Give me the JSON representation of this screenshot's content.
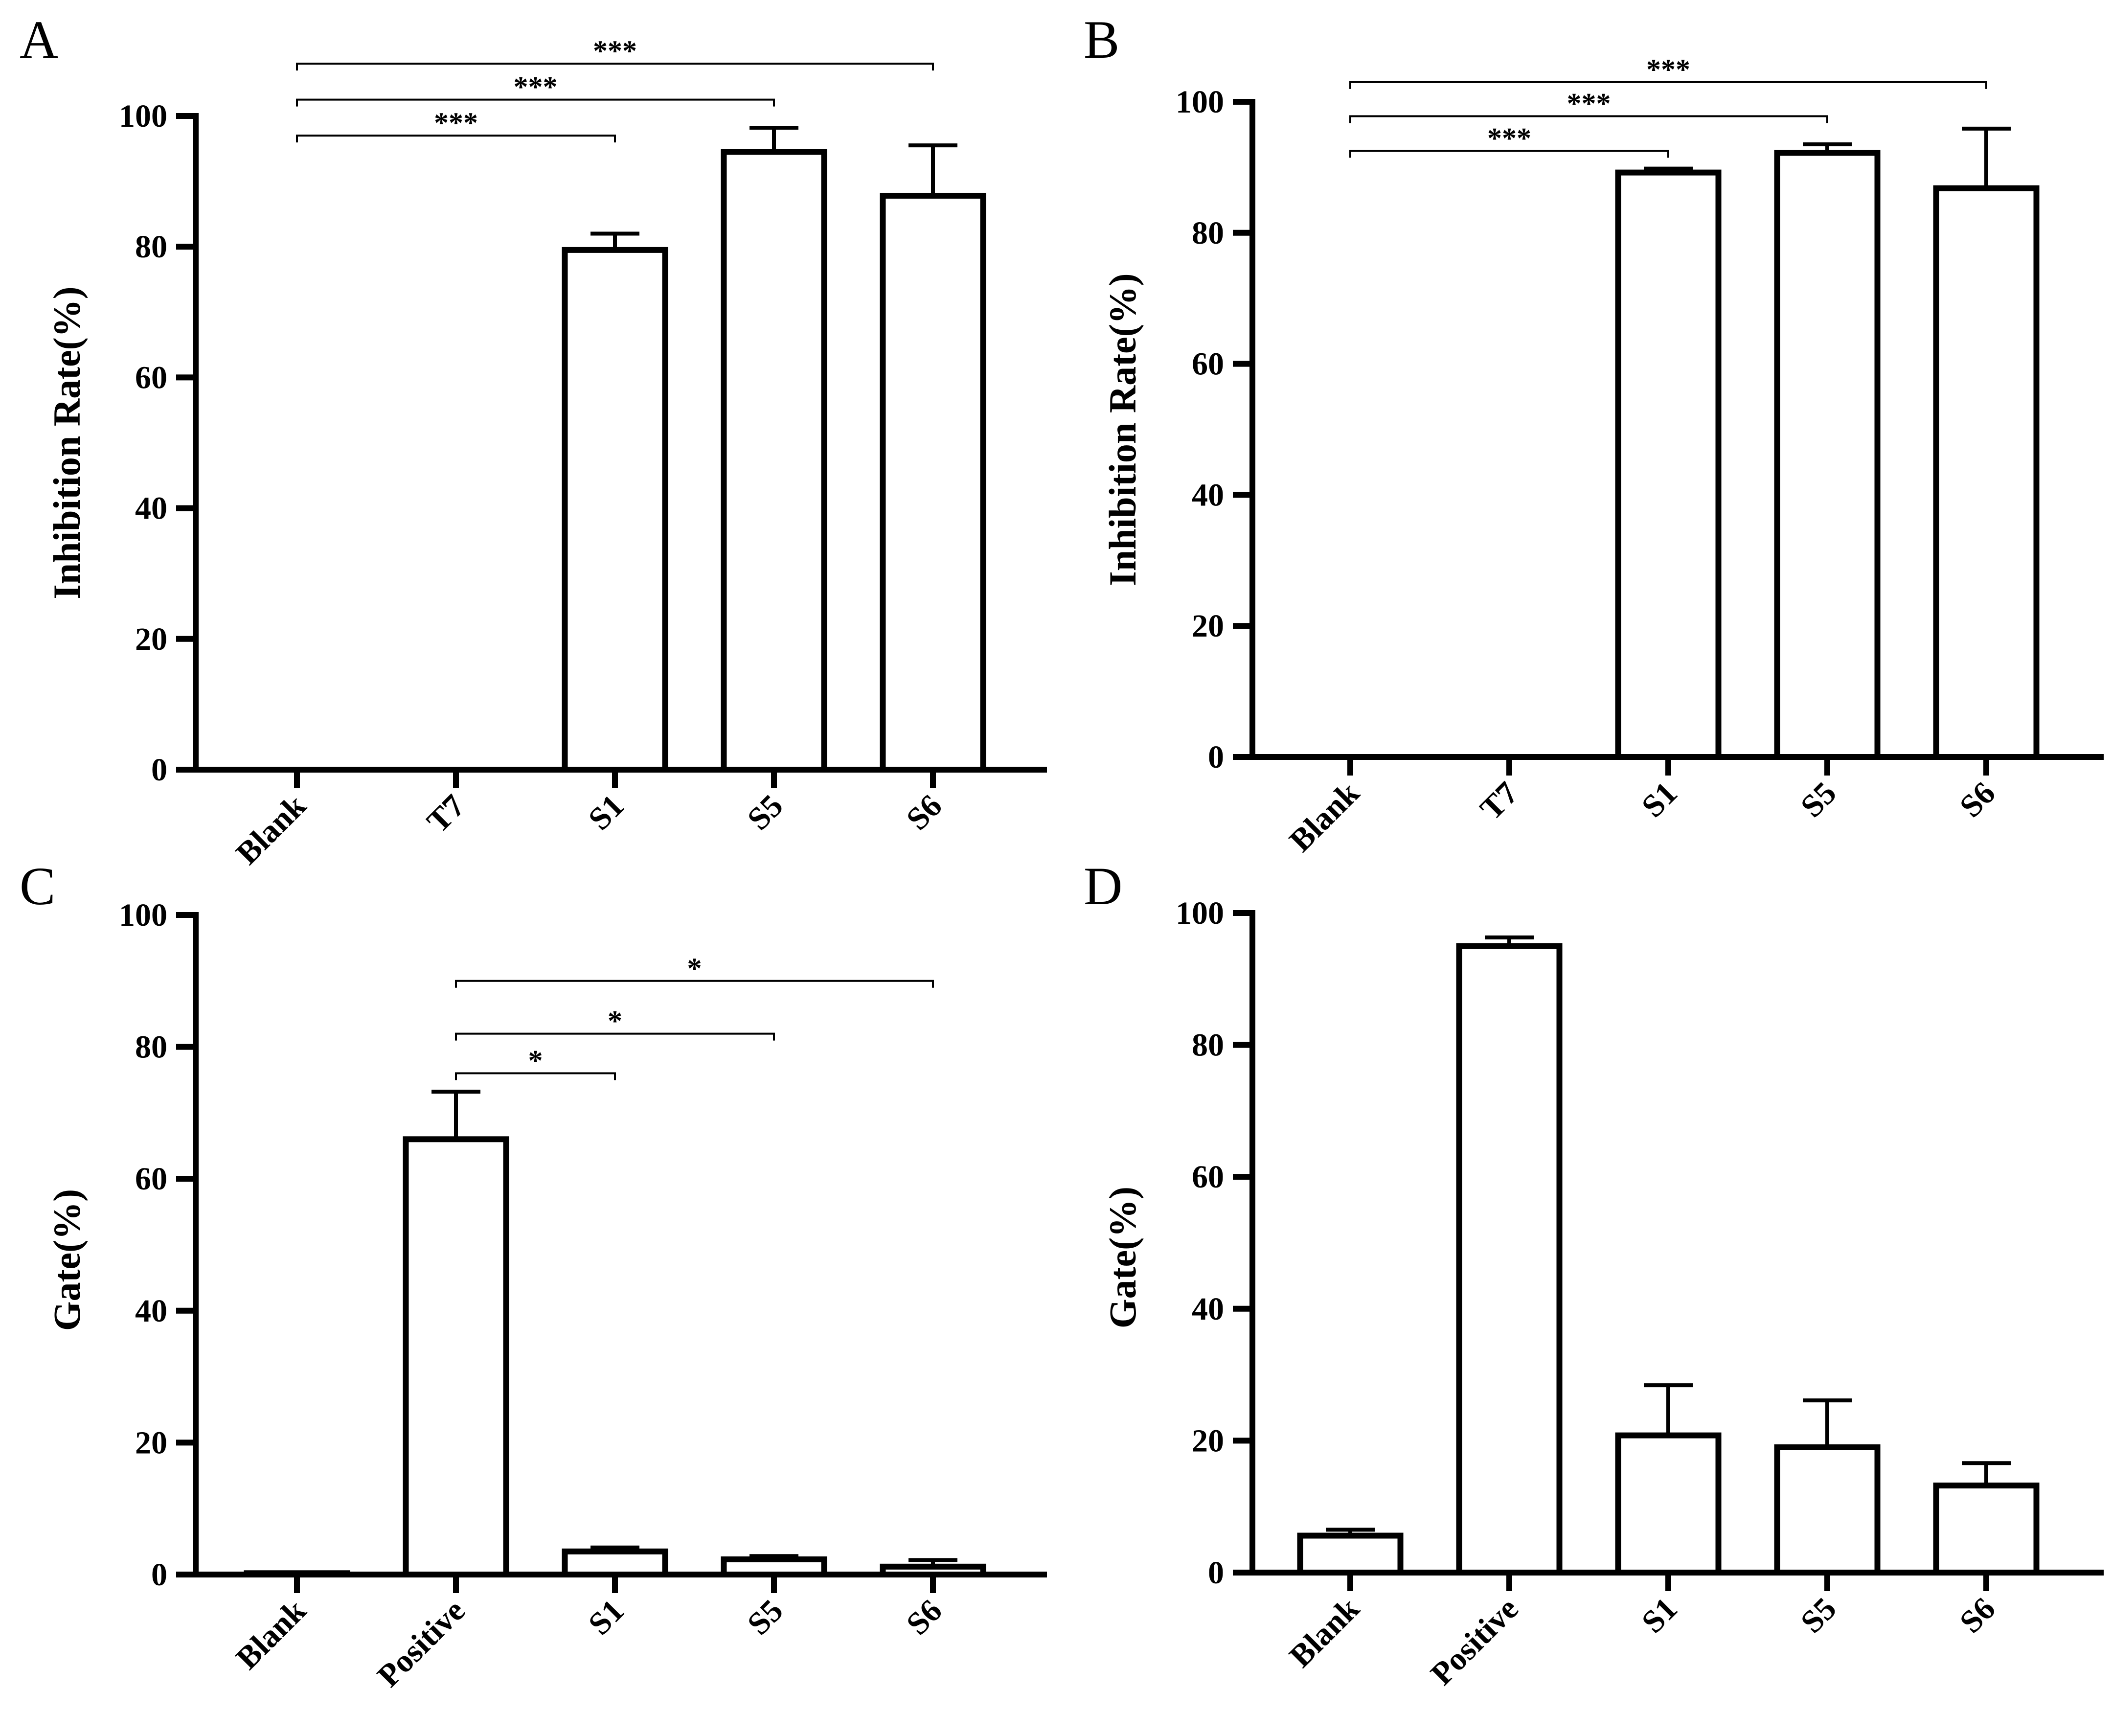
{
  "colors": {
    "bar_fill": "#ffffff",
    "stroke": "#000000",
    "background": "#ffffff"
  },
  "chart_data": [
    {
      "panel": "A",
      "type": "bar",
      "title": "",
      "xlabel": "",
      "ylabel": "Inhibition Rate(%)",
      "ylim": [
        0,
        100
      ],
      "yticks": [
        0,
        20,
        40,
        60,
        80,
        100
      ],
      "grid": false,
      "categories": [
        "Blank",
        "T7",
        "S1",
        "S5",
        "S6"
      ],
      "values": [
        0,
        0,
        79.5,
        94.5,
        87.8
      ],
      "errors": [
        0,
        0,
        2.5,
        3.7,
        7.7
      ],
      "significance": [
        {
          "from": 0,
          "to": 2,
          "label": "***",
          "y": 97
        },
        {
          "from": 0,
          "to": 3,
          "label": "***",
          "y": 102.5
        },
        {
          "from": 0,
          "to": 4,
          "label": "***",
          "y": 108
        }
      ]
    },
    {
      "panel": "B",
      "type": "bar",
      "title": "",
      "xlabel": "",
      "ylabel": "Inhibition Rate(%)",
      "ylim": [
        0,
        100
      ],
      "yticks": [
        0,
        20,
        40,
        60,
        80,
        100
      ],
      "grid": false,
      "categories": [
        "Blank",
        "T7",
        "S1",
        "S5",
        "S6"
      ],
      "values": [
        0,
        0,
        89.2,
        92.2,
        86.8
      ],
      "errors": [
        0,
        0,
        0.6,
        1.3,
        9.1
      ],
      "significance": [
        {
          "from": 0,
          "to": 2,
          "label": "***",
          "y": 92.5
        },
        {
          "from": 0,
          "to": 3,
          "label": "***",
          "y": 97.8
        },
        {
          "from": 0,
          "to": 4,
          "label": "***",
          "y": 103
        }
      ]
    },
    {
      "panel": "C",
      "type": "bar",
      "title": "",
      "xlabel": "",
      "ylabel": "Gate(%)",
      "ylim": [
        0,
        100
      ],
      "yticks": [
        0,
        20,
        40,
        60,
        80,
        100
      ],
      "grid": false,
      "categories": [
        "Blank",
        "Positive",
        "S1",
        "S5",
        "S6"
      ],
      "values": [
        0.2,
        66.0,
        3.5,
        2.3,
        1.2
      ],
      "errors": [
        0,
        7.2,
        0.6,
        0.5,
        1.0
      ],
      "significance": [
        {
          "from": 1,
          "to": 2,
          "label": "*",
          "y": 76
        },
        {
          "from": 1,
          "to": 3,
          "label": "*",
          "y": 82
        },
        {
          "from": 1,
          "to": 4,
          "label": "*",
          "y": 90
        }
      ]
    },
    {
      "panel": "D",
      "type": "bar",
      "title": "",
      "xlabel": "",
      "ylabel": "Gate(%)",
      "ylim": [
        0,
        100
      ],
      "yticks": [
        0,
        20,
        40,
        60,
        80,
        100
      ],
      "grid": false,
      "categories": [
        "Blank",
        "Positive",
        "S1",
        "S5",
        "S6"
      ],
      "values": [
        5.6,
        95.0,
        20.8,
        19.0,
        13.2
      ],
      "errors": [
        0.9,
        1.3,
        7.6,
        7.1,
        3.4
      ],
      "significance": []
    }
  ]
}
